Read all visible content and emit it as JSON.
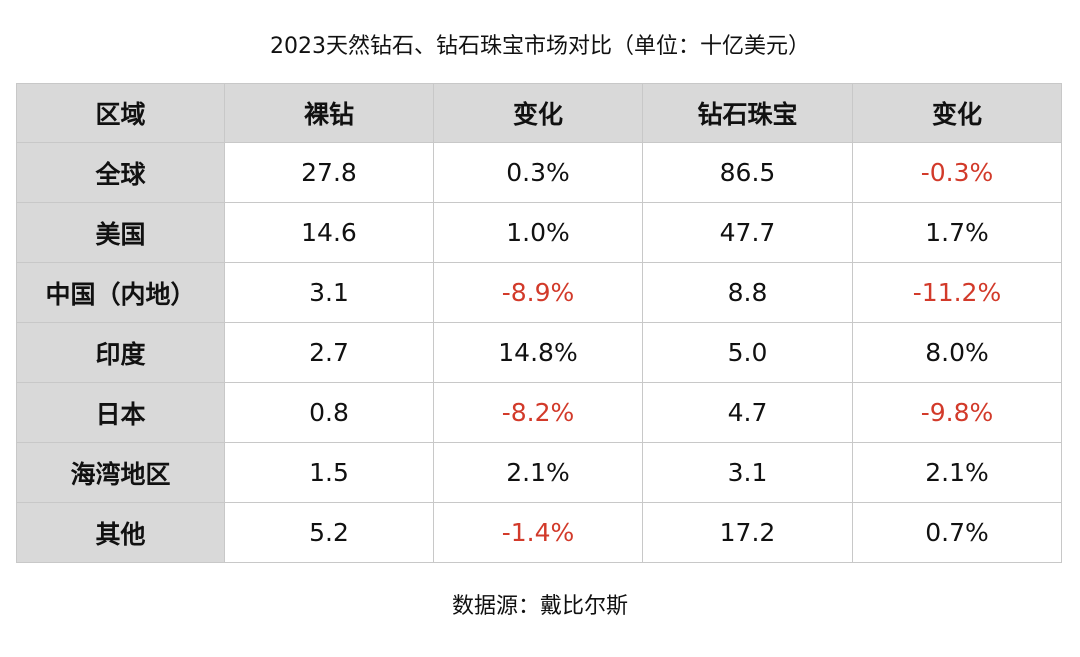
{
  "title": "2023天然钻石、钻石珠宝市场对比（单位：十亿美元）",
  "table": {
    "headers": [
      "区域",
      "裸钻",
      "变化",
      "钻石珠宝",
      "变化"
    ],
    "rows": [
      {
        "region": "全球",
        "rough": "27.8",
        "rough_change": "0.3%",
        "jewelry": "86.5",
        "jewelry_change": "-0.3%"
      },
      {
        "region": "美国",
        "rough": "14.6",
        "rough_change": "1.0%",
        "jewelry": "47.7",
        "jewelry_change": "1.7%"
      },
      {
        "region": "中国（内地）",
        "rough": "3.1",
        "rough_change": "-8.9%",
        "jewelry": "8.8",
        "jewelry_change": "-11.2%"
      },
      {
        "region": "印度",
        "rough": "2.7",
        "rough_change": "14.8%",
        "jewelry": "5.0",
        "jewelry_change": "8.0%"
      },
      {
        "region": "日本",
        "rough": "0.8",
        "rough_change": "-8.2%",
        "jewelry": "4.7",
        "jewelry_change": "-9.8%"
      },
      {
        "region": "海湾地区",
        "rough": "1.5",
        "rough_change": "2.1%",
        "jewelry": "3.1",
        "jewelry_change": "2.1%"
      },
      {
        "region": "其他",
        "rough": "5.2",
        "rough_change": "-1.4%",
        "jewelry": "17.2",
        "jewelry_change": "0.7%"
      }
    ]
  },
  "colors": {
    "header_bg": "#d9d9d9",
    "negative_text": "#d23a2a",
    "border": "#c8c8c8"
  },
  "source": "数据源：戴比尔斯"
}
